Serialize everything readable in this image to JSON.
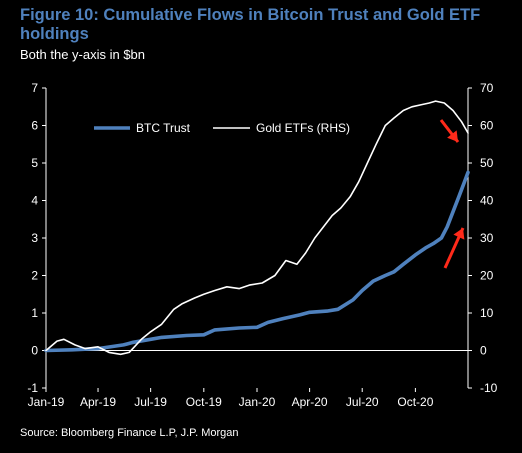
{
  "figure": {
    "title": "Figure 10: Cumulative Flows in Bitcoin Trust and Gold ETF holdings",
    "subtitle": "Both the y-axis in $bn",
    "source": "Source: Bloomberg Finance L.P, J.P. Morgan"
  },
  "chart_data": {
    "type": "line",
    "title": "Figure 10: Cumulative Flows in Bitcoin Trust and Gold ETF holdings",
    "subtitle": "Both the y-axis in $bn",
    "x_ticks": [
      "Jan-19",
      "Apr-19",
      "Jul-19",
      "Oct-19",
      "Jan-20",
      "Apr-20",
      "Jul-20",
      "Oct-20"
    ],
    "x_tick_dates": [
      "2019-01-01",
      "2019-04-01",
      "2019-07-01",
      "2019-10-01",
      "2020-01-01",
      "2020-04-01",
      "2020-07-01",
      "2020-10-01"
    ],
    "y_left": {
      "ylim": [
        -1,
        7
      ],
      "ticks": [
        -1,
        0,
        1,
        2,
        3,
        4,
        5,
        6,
        7
      ]
    },
    "y_right": {
      "ylim": [
        -10,
        70
      ],
      "ticks": [
        -10,
        0,
        10,
        20,
        30,
        40,
        50,
        60,
        70
      ]
    },
    "legend": {
      "placement": "top-left inside plot",
      "entries": [
        "BTC Trust",
        "Gold ETFs (RHS)"
      ]
    },
    "series": [
      {
        "name": "BTC Trust",
        "axis": "left",
        "color": "#4f81bd",
        "points": [
          [
            "2019-01-01",
            0.0
          ],
          [
            "2019-02-15",
            0.02
          ],
          [
            "2019-04-01",
            0.05
          ],
          [
            "2019-05-15",
            0.15
          ],
          [
            "2019-06-01",
            0.22
          ],
          [
            "2019-07-01",
            0.3
          ],
          [
            "2019-07-20",
            0.35
          ],
          [
            "2019-09-01",
            0.4
          ],
          [
            "2019-10-01",
            0.42
          ],
          [
            "2019-10-20",
            0.55
          ],
          [
            "2019-12-01",
            0.6
          ],
          [
            "2020-01-01",
            0.62
          ],
          [
            "2020-01-20",
            0.75
          ],
          [
            "2020-02-15",
            0.85
          ],
          [
            "2020-03-15",
            0.95
          ],
          [
            "2020-04-01",
            1.02
          ],
          [
            "2020-05-01",
            1.05
          ],
          [
            "2020-05-20",
            1.1
          ],
          [
            "2020-06-15",
            1.35
          ],
          [
            "2020-07-01",
            1.6
          ],
          [
            "2020-07-20",
            1.85
          ],
          [
            "2020-08-10",
            2.0
          ],
          [
            "2020-08-25",
            2.1
          ],
          [
            "2020-09-10",
            2.3
          ],
          [
            "2020-10-01",
            2.55
          ],
          [
            "2020-10-20",
            2.75
          ],
          [
            "2020-11-01",
            2.85
          ],
          [
            "2020-11-15",
            3.0
          ],
          [
            "2020-11-25",
            3.3
          ],
          [
            "2020-12-05",
            3.7
          ],
          [
            "2020-12-15",
            4.1
          ],
          [
            "2020-12-25",
            4.5
          ],
          [
            "2020-12-31",
            4.75
          ]
        ]
      },
      {
        "name": "Gold ETFs (RHS)",
        "axis": "right",
        "color": "#ffffff",
        "points": [
          [
            "2019-01-01",
            0.0
          ],
          [
            "2019-01-20",
            2.5
          ],
          [
            "2019-02-01",
            3.0
          ],
          [
            "2019-02-20",
            1.5
          ],
          [
            "2019-03-10",
            0.5
          ],
          [
            "2019-04-01",
            1.0
          ],
          [
            "2019-04-20",
            -0.5
          ],
          [
            "2019-05-10",
            -1.0
          ],
          [
            "2019-05-25",
            -0.5
          ],
          [
            "2019-06-15",
            3.0
          ],
          [
            "2019-07-01",
            5.0
          ],
          [
            "2019-07-20",
            7.0
          ],
          [
            "2019-08-10",
            11.0
          ],
          [
            "2019-08-25",
            12.5
          ],
          [
            "2019-09-15",
            14.0
          ],
          [
            "2019-10-01",
            15.0
          ],
          [
            "2019-10-20",
            16.0
          ],
          [
            "2019-11-10",
            17.0
          ],
          [
            "2019-12-01",
            16.5
          ],
          [
            "2019-12-20",
            17.5
          ],
          [
            "2020-01-10",
            18.0
          ],
          [
            "2020-02-01",
            20.0
          ],
          [
            "2020-02-20",
            24.0
          ],
          [
            "2020-03-10",
            23.0
          ],
          [
            "2020-03-25",
            26.0
          ],
          [
            "2020-04-10",
            30.0
          ],
          [
            "2020-04-25",
            33.0
          ],
          [
            "2020-05-10",
            36.0
          ],
          [
            "2020-05-25",
            38.0
          ],
          [
            "2020-06-10",
            41.0
          ],
          [
            "2020-06-25",
            45.0
          ],
          [
            "2020-07-10",
            50.0
          ],
          [
            "2020-07-25",
            55.0
          ],
          [
            "2020-08-10",
            60.0
          ],
          [
            "2020-08-25",
            62.0
          ],
          [
            "2020-09-10",
            64.0
          ],
          [
            "2020-09-25",
            65.0
          ],
          [
            "2020-10-10",
            65.5
          ],
          [
            "2020-10-25",
            66.0
          ],
          [
            "2020-11-05",
            66.5
          ],
          [
            "2020-11-20",
            66.0
          ],
          [
            "2020-12-05",
            64.0
          ],
          [
            "2020-12-20",
            61.0
          ],
          [
            "2020-12-31",
            58.0
          ]
        ]
      }
    ],
    "annotations": [
      {
        "type": "arrow",
        "color": "#ff2a1a",
        "points_to": "Gold ETFs (RHS) decline",
        "near": [
          "2020-12-20",
          61.0
        ],
        "axis": "right"
      },
      {
        "type": "arrow",
        "color": "#ff2a1a",
        "points_to": "BTC Trust rise",
        "near": [
          "2020-12-25",
          4.3
        ],
        "axis": "left"
      }
    ],
    "grid": false
  }
}
